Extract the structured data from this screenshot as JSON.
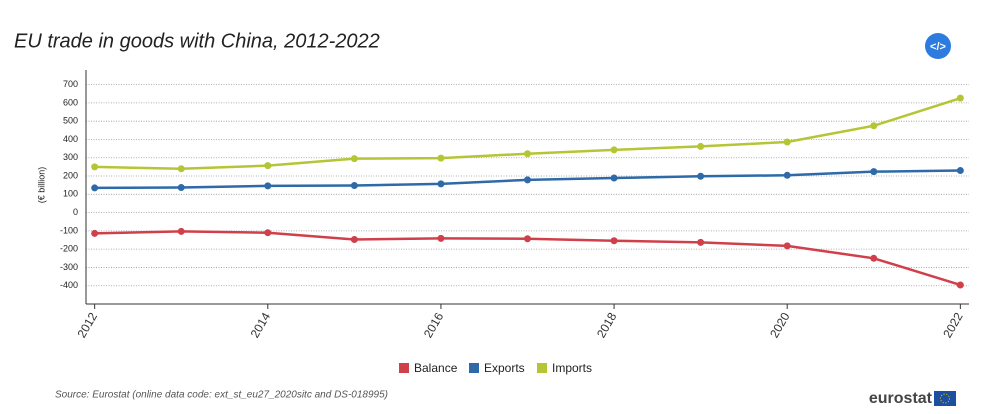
{
  "chart_data": {
    "type": "line",
    "title": "EU trade in goods with China, 2012-2022",
    "y_label": "(€ billion)",
    "x": [
      2012,
      2013,
      2014,
      2015,
      2016,
      2017,
      2018,
      2019,
      2020,
      2021,
      2022
    ],
    "xlim": [
      2011.9,
      2022.1
    ],
    "xticks": [
      2012,
      2014,
      2016,
      2018,
      2020,
      2022
    ],
    "ylim": [
      -500,
      780
    ],
    "yticks": [
      -400,
      -300,
      -200,
      -100,
      0,
      100,
      200,
      300,
      400,
      500,
      600,
      700
    ],
    "grid": true,
    "legend": "bottom",
    "series": [
      {
        "name": "Balance",
        "color": "#d0404a",
        "values": [
          -114,
          -103,
          -110,
          -147,
          -141,
          -143,
          -154,
          -163,
          -182,
          -250,
          -396
        ]
      },
      {
        "name": "Exports",
        "color": "#2e6aa8",
        "values": [
          135,
          137,
          146,
          148,
          157,
          179,
          189,
          199,
          204,
          224,
          230
        ]
      },
      {
        "name": "Imports",
        "color": "#b5c535",
        "values": [
          250,
          240,
          257,
          295,
          298,
          322,
          343,
          362,
          386,
          475,
          626
        ]
      }
    ],
    "source": "Source: Eurostat (online data code: ext_st_eu27_2020sitc and DS-018995)",
    "code_button": "</>",
    "logo": "eurostat"
  }
}
